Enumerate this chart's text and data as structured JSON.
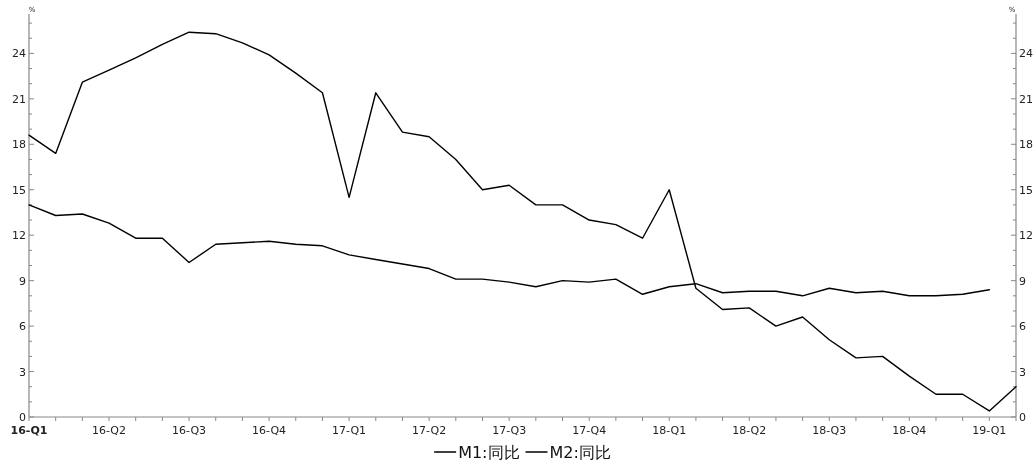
{
  "chart_data": {
    "type": "line",
    "categories": [
      "16-Q1",
      null,
      null,
      "16-Q2",
      null,
      null,
      "16-Q3",
      null,
      null,
      "16-Q4",
      null,
      null,
      "17-Q1",
      null,
      null,
      "17-Q2",
      null,
      null,
      "17-Q3",
      null,
      null,
      "17-Q4",
      null,
      null,
      "18-Q1",
      null,
      null,
      "18-Q2",
      null,
      null,
      "18-Q3",
      null,
      null,
      "18-Q4",
      null,
      null,
      "19-Q1",
      null
    ],
    "series": [
      {
        "name": "M1:同比",
        "color": "#000000",
        "values": [
          18.6,
          17.4,
          22.1,
          22.9,
          23.7,
          24.6,
          25.4,
          25.3,
          24.7,
          23.9,
          22.7,
          21.4,
          14.5,
          21.4,
          18.8,
          18.5,
          17.0,
          15.0,
          15.3,
          14.0,
          14.0,
          13.0,
          12.7,
          11.8,
          15.0,
          8.5,
          7.1,
          7.2,
          6.0,
          6.6,
          5.1,
          3.9,
          4.0,
          2.7,
          1.5,
          1.5,
          0.4,
          2.0
        ]
      },
      {
        "name": "M2:同比",
        "color": "#000000",
        "values": [
          14.0,
          13.3,
          13.4,
          12.8,
          11.8,
          11.8,
          10.2,
          11.4,
          11.5,
          11.6,
          11.4,
          11.3,
          10.7,
          10.4,
          10.1,
          9.8,
          9.1,
          9.1,
          8.9,
          8.6,
          9.0,
          8.9,
          9.1,
          8.1,
          8.6,
          8.8,
          8.2,
          8.3,
          8.3,
          8.0,
          8.5,
          8.2,
          8.3,
          8.0,
          8.0,
          8.1,
          8.4,
          null
        ]
      }
    ],
    "ylabel": "%",
    "y2label": "%",
    "ylim": [
      0,
      26.6
    ],
    "y2lim": [
      0,
      26.6
    ],
    "yticks": [
      0,
      {
        "value": 1,
        "label": null
      },
      {
        "value": 2,
        "label": null
      },
      3,
      {
        "value": 4,
        "label": null
      },
      {
        "value": 5,
        "label": null
      },
      6,
      {
        "value": 7,
        "label": null
      },
      {
        "value": 8,
        "label": null
      },
      9,
      {
        "value": 10,
        "label": null
      },
      {
        "value": 11,
        "label": null
      },
      12,
      {
        "value": 13,
        "label": null
      },
      {
        "value": 14,
        "label": null
      },
      15,
      {
        "value": 16,
        "label": null
      },
      {
        "value": 17,
        "label": null
      },
      18,
      {
        "value": 19,
        "label": null
      },
      {
        "value": 20,
        "label": null
      },
      21,
      {
        "value": 22,
        "label": null
      },
      {
        "value": 23,
        "label": null
      },
      24,
      {
        "value": 25,
        "label": null
      },
      {
        "value": 26,
        "label": null
      }
    ],
    "y2ticks": [
      0,
      {
        "value": 1,
        "label": null
      },
      {
        "value": 2,
        "label": null
      },
      3,
      {
        "value": 4,
        "label": null
      },
      {
        "value": 5,
        "label": null
      },
      6,
      {
        "value": 7,
        "label": null
      },
      {
        "value": 8,
        "label": null
      },
      9,
      {
        "value": 10,
        "label": null
      },
      {
        "value": 11,
        "label": null
      },
      12,
      {
        "value": 13,
        "label": null
      },
      {
        "value": 14,
        "label": null
      },
      15,
      {
        "value": 16,
        "label": null
      },
      {
        "value": 17,
        "label": null
      },
      18,
      {
        "value": 19,
        "label": null
      },
      {
        "value": 20,
        "label": null
      },
      21,
      {
        "value": 22,
        "label": null
      },
      {
        "value": 23,
        "label": null
      },
      24,
      {
        "value": 25,
        "label": null
      },
      {
        "value": 26,
        "label": null
      }
    ],
    "legend": "bottom"
  }
}
